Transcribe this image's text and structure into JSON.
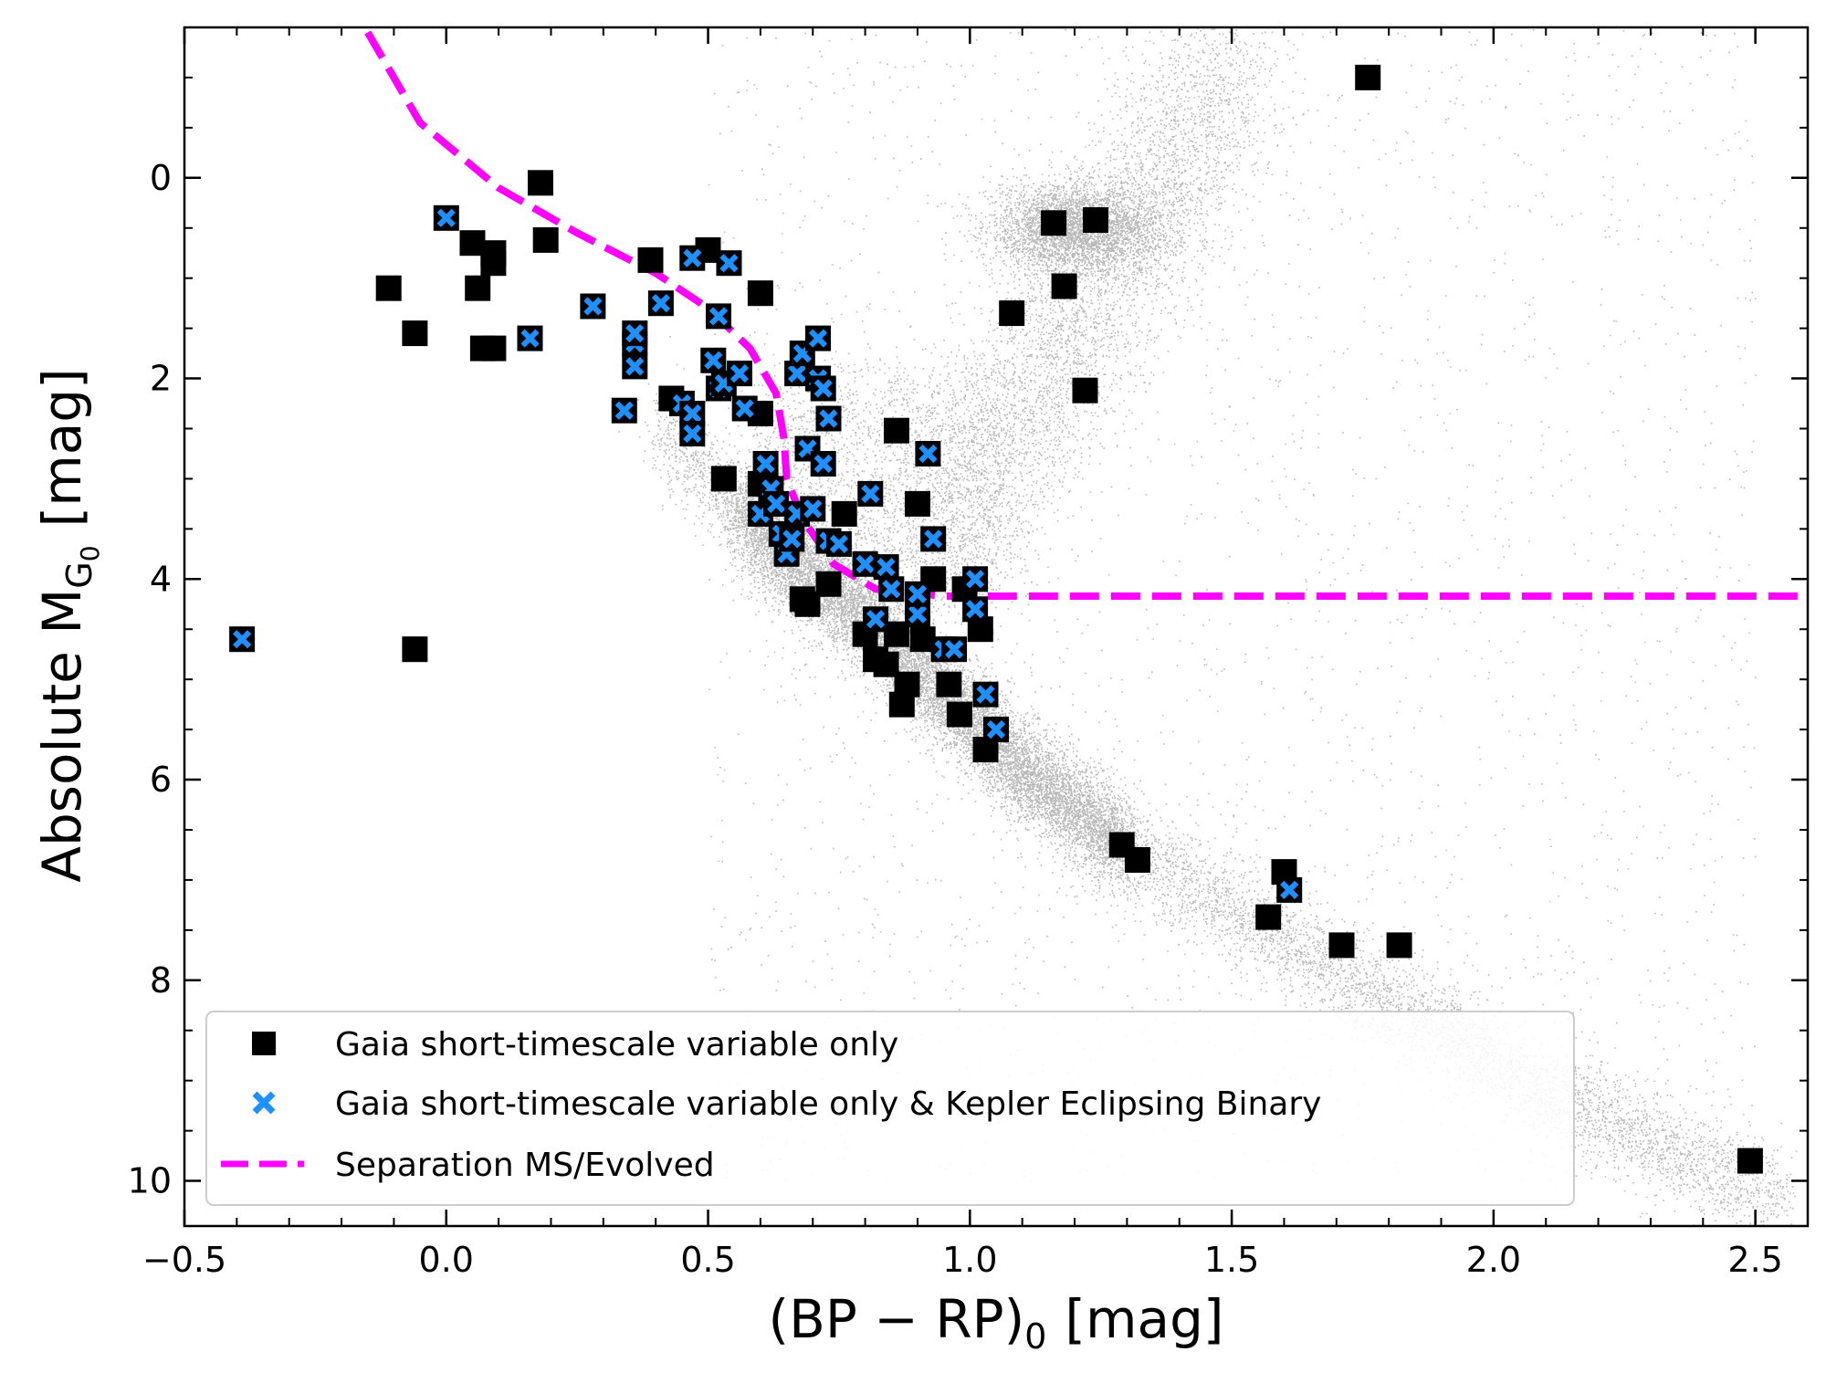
{
  "chart_data": {
    "type": "scatter",
    "title": "",
    "xlabel": "(BP − RP)",
    "xlabel_subscript": "0",
    "xlabel_unit": "[mag]",
    "ylabel": "Absolute M",
    "ylabel_sub1": "G",
    "ylabel_sub2": "0",
    "ylabel_unit": "[mag]",
    "xlim": [
      -0.5,
      2.6
    ],
    "ylim": [
      10.45,
      -1.5
    ],
    "y_inverted": true,
    "x_ticks": [
      -0.5,
      0.0,
      0.5,
      1.0,
      1.5,
      2.0,
      2.5
    ],
    "x_tick_labels": [
      "−0.5",
      "0.0",
      "0.5",
      "1.0",
      "1.5",
      "2.0",
      "2.5"
    ],
    "y_ticks": [
      0,
      2,
      4,
      6,
      8,
      10
    ],
    "y_tick_labels": [
      "0",
      "2",
      "4",
      "6",
      "8",
      "10"
    ],
    "grid": false,
    "legend_position": "lower-left",
    "background_population": {
      "color": "#808080",
      "main_sequence": [
        [
          0.4,
          2.5
        ],
        [
          0.5,
          3.0
        ],
        [
          0.6,
          3.5
        ],
        [
          0.7,
          4.0
        ],
        [
          0.8,
          4.4
        ],
        [
          0.9,
          4.9
        ],
        [
          1.0,
          5.4
        ],
        [
          1.1,
          5.9
        ],
        [
          1.2,
          6.3
        ],
        [
          1.3,
          6.7
        ],
        [
          1.5,
          7.3
        ],
        [
          1.7,
          7.9
        ],
        [
          1.9,
          8.5
        ],
        [
          2.1,
          9.1
        ],
        [
          2.3,
          9.6
        ],
        [
          2.5,
          10.1
        ]
      ],
      "red_clump": [
        1.2,
        0.5
      ]
    },
    "series": [
      {
        "name": "Gaia short-timescale variable only",
        "marker": "square",
        "color": "#000000",
        "points": [
          [
            -0.11,
            1.1
          ],
          [
            -0.06,
            1.55
          ],
          [
            0.05,
            0.65
          ],
          [
            0.06,
            1.1
          ],
          [
            0.07,
            1.7
          ],
          [
            0.09,
            1.7
          ],
          [
            0.09,
            0.75
          ],
          [
            0.09,
            0.85
          ],
          [
            0.18,
            0.05
          ],
          [
            0.19,
            0.62
          ],
          [
            0.39,
            0.82
          ],
          [
            0.43,
            2.2
          ],
          [
            0.5,
            0.72
          ],
          [
            0.53,
            3.0
          ],
          [
            0.6,
            2.35
          ],
          [
            0.6,
            3.05
          ],
          [
            0.6,
            1.15
          ],
          [
            0.68,
            4.2
          ],
          [
            0.69,
            4.25
          ],
          [
            0.73,
            4.05
          ],
          [
            0.76,
            3.35
          ],
          [
            0.8,
            4.55
          ],
          [
            0.82,
            4.8
          ],
          [
            0.84,
            4.85
          ],
          [
            0.86,
            4.55
          ],
          [
            0.86,
            2.52
          ],
          [
            0.87,
            5.25
          ],
          [
            0.88,
            5.05
          ],
          [
            0.9,
            3.25
          ],
          [
            0.91,
            4.6
          ],
          [
            0.93,
            4.0
          ],
          [
            0.96,
            5.05
          ],
          [
            0.98,
            5.35
          ],
          [
            0.99,
            4.1
          ],
          [
            1.02,
            4.5
          ],
          [
            1.03,
            5.7
          ],
          [
            1.08,
            1.35
          ],
          [
            1.16,
            0.45
          ],
          [
            1.18,
            1.08
          ],
          [
            1.22,
            2.12
          ],
          [
            1.24,
            0.42
          ],
          [
            1.29,
            6.65
          ],
          [
            1.32,
            6.8
          ],
          [
            1.57,
            7.37
          ],
          [
            1.6,
            6.92
          ],
          [
            1.71,
            7.65
          ],
          [
            1.76,
            -1.0
          ],
          [
            1.82,
            7.65
          ],
          [
            2.49,
            9.8
          ],
          [
            -0.06,
            4.7
          ]
        ]
      },
      {
        "name": "Gaia short-timescale variable only & Kepler Eclipsing Binary",
        "marker": "x-on-square",
        "color": "#1e90ff",
        "points": [
          [
            -0.39,
            4.6
          ],
          [
            0.0,
            0.4
          ],
          [
            0.16,
            1.6
          ],
          [
            0.28,
            1.28
          ],
          [
            0.34,
            2.32
          ],
          [
            0.36,
            1.65
          ],
          [
            0.36,
            1.88
          ],
          [
            0.36,
            1.55
          ],
          [
            0.41,
            1.25
          ],
          [
            0.45,
            2.25
          ],
          [
            0.47,
            2.35
          ],
          [
            0.47,
            2.55
          ],
          [
            0.47,
            0.8
          ],
          [
            0.51,
            1.82
          ],
          [
            0.52,
            1.38
          ],
          [
            0.52,
            2.1
          ],
          [
            0.53,
            2.05
          ],
          [
            0.54,
            0.85
          ],
          [
            0.56,
            1.95
          ],
          [
            0.57,
            2.3
          ],
          [
            0.6,
            3.35
          ],
          [
            0.61,
            2.85
          ],
          [
            0.62,
            3.1
          ],
          [
            0.63,
            3.25
          ],
          [
            0.64,
            3.55
          ],
          [
            0.65,
            3.75
          ],
          [
            0.66,
            3.6
          ],
          [
            0.67,
            3.35
          ],
          [
            0.67,
            1.95
          ],
          [
            0.68,
            1.75
          ],
          [
            0.69,
            2.7
          ],
          [
            0.7,
            3.3
          ],
          [
            0.71,
            1.6
          ],
          [
            0.71,
            2.0
          ],
          [
            0.72,
            2.1
          ],
          [
            0.72,
            2.85
          ],
          [
            0.73,
            2.4
          ],
          [
            0.73,
            3.62
          ],
          [
            0.75,
            3.65
          ],
          [
            0.8,
            3.85
          ],
          [
            0.81,
            3.15
          ],
          [
            0.82,
            4.4
          ],
          [
            0.84,
            3.88
          ],
          [
            0.85,
            4.1
          ],
          [
            0.9,
            4.35
          ],
          [
            0.9,
            4.15
          ],
          [
            0.92,
            2.75
          ],
          [
            0.93,
            3.6
          ],
          [
            0.95,
            4.7
          ],
          [
            0.97,
            4.7
          ],
          [
            1.01,
            4.0
          ],
          [
            1.01,
            4.3
          ],
          [
            1.03,
            5.15
          ],
          [
            1.05,
            5.5
          ],
          [
            1.61,
            7.1
          ]
        ]
      },
      {
        "name": "Separation MS/Evolved",
        "type": "dashed-line",
        "color": "#ff00ff",
        "points": [
          [
            -0.15,
            -1.45
          ],
          [
            -0.05,
            -0.55
          ],
          [
            0.1,
            0.1
          ],
          [
            0.25,
            0.55
          ],
          [
            0.4,
            0.95
          ],
          [
            0.5,
            1.3
          ],
          [
            0.58,
            1.7
          ],
          [
            0.63,
            2.15
          ],
          [
            0.645,
            2.6
          ],
          [
            0.65,
            3.0
          ],
          [
            0.68,
            3.4
          ],
          [
            0.74,
            3.85
          ],
          [
            0.82,
            4.1
          ],
          [
            0.95,
            4.17
          ],
          [
            1.05,
            4.17
          ],
          [
            2.6,
            4.17
          ]
        ]
      }
    ]
  }
}
